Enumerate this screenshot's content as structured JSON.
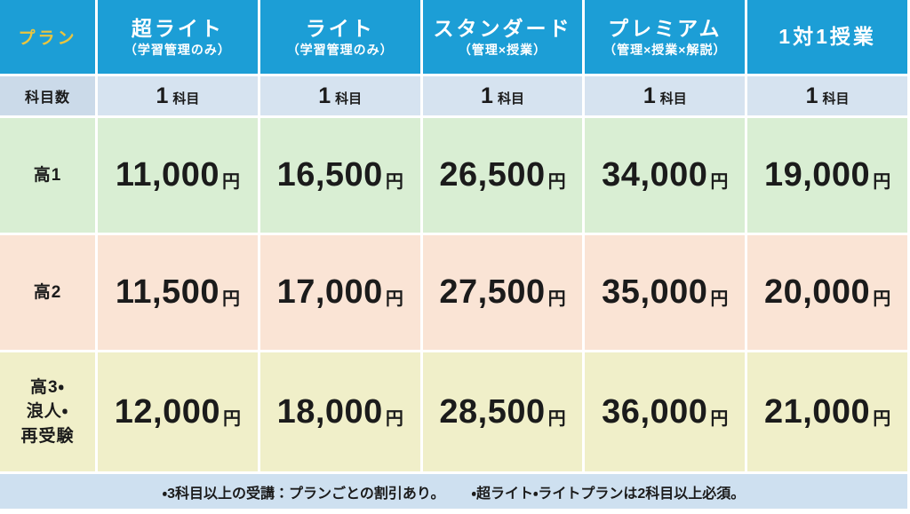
{
  "table": {
    "corner_label": "プラン",
    "plans": [
      {
        "name": "超ライト",
        "subtitle": "（学習管理のみ）"
      },
      {
        "name": "ライト",
        "subtitle": "（学習管理のみ）"
      },
      {
        "name": "スタンダード",
        "subtitle": "（管理×授業）"
      },
      {
        "name": "プレミアム",
        "subtitle": "（管理×授業×解説）"
      },
      {
        "name": "1対1授業",
        "subtitle": ""
      }
    ],
    "subject_row": {
      "label": "科目数",
      "values": [
        "1",
        "1",
        "1",
        "1",
        "1"
      ],
      "unit": "科目"
    },
    "price_unit": "円",
    "grade_rows": [
      {
        "label": "高1",
        "prices": [
          "11,000",
          "16,500",
          "26,500",
          "34,000",
          "19,000"
        ]
      },
      {
        "label": "高2",
        "prices": [
          "11,500",
          "17,000",
          "27,500",
          "35,000",
          "20,000"
        ]
      },
      {
        "label": "高3・\n浪人・\n再受験",
        "prices": [
          "12,000",
          "18,000",
          "28,500",
          "36,000",
          "21,000"
        ]
      }
    ],
    "footer_notes": [
      "・3科目以上の受講：プランごとの割引あり。",
      "・超ライト・ライトプランは2科目以上必須。"
    ]
  },
  "colors": {
    "header_blue": "#1C9ED6",
    "corner_yellow": "#E9C53F",
    "subject_label_bg": "#CBDAE9",
    "subject_cell_bg": "#D6E3F0",
    "grade1_bg": "#D9EED3",
    "grade2_bg": "#FAE4D5",
    "grade3_bg": "#F0EFC9",
    "footer_bg": "#CEE0F0",
    "text": "#1B1B1B"
  },
  "chart_data": {
    "type": "table",
    "columns": [
      "プラン",
      "超ライト（学習管理のみ）",
      "ライト（学習管理のみ）",
      "スタンダード（管理×授業）",
      "プレミアム（管理×授業×解説）",
      "1対1授業"
    ],
    "rows": [
      [
        "科目数",
        "1科目",
        "1科目",
        "1科目",
        "1科目",
        "1科目"
      ],
      [
        "高1",
        "11,000円",
        "16,500円",
        "26,500円",
        "34,000円",
        "19,000円"
      ],
      [
        "高2",
        "11,500円",
        "17,000円",
        "27,500円",
        "35,000円",
        "20,000円"
      ],
      [
        "高3・浪人・再受験",
        "12,000円",
        "18,000円",
        "28,500円",
        "36,000円",
        "21,000円"
      ]
    ],
    "notes": "・3科目以上の受講：プランごとの割引あり。 ・超ライト・ライトプランは2科目以上必須。"
  }
}
